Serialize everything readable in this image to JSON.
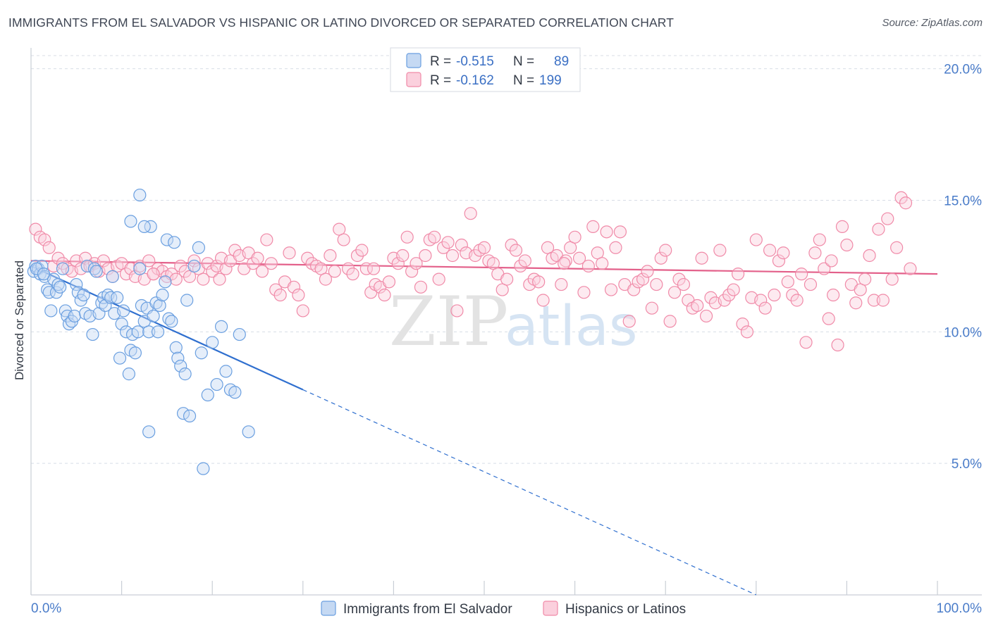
{
  "title": "IMMIGRANTS FROM EL SALVADOR VS HISPANIC OR LATINO DIVORCED OR SEPARATED CORRELATION CHART",
  "source": "Source: ZipAtlas.com",
  "watermark": {
    "part1": "ZIP",
    "part2": "atlas"
  },
  "colors": {
    "blue": "#6a9fe0",
    "blue_line": "#2f6fcf",
    "pink": "#f08aa8",
    "pink_line": "#e3608a",
    "tick_text": "#4a7cc9",
    "grid": "#d8dde6"
  },
  "legend": {
    "series": [
      {
        "r_label": "R =",
        "r_value": "-0.515",
        "n_label": "N =",
        "n_value": "89"
      },
      {
        "r_label": "R =",
        "r_value": "-0.162",
        "n_label": "N =",
        "n_value": "199"
      }
    ]
  },
  "chart_data": {
    "type": "scatter",
    "title": "IMMIGRANTS FROM EL SALVADOR VS HISPANIC OR LATINO DIVORCED OR SEPARATED CORRELATION CHART",
    "xlabel": "",
    "ylabel": "Divorced or Separated",
    "xlim": [
      0,
      100
    ],
    "ylim": [
      0,
      20.5
    ],
    "x_tick_labels": [
      "0.0%",
      "100.0%"
    ],
    "y_ticks": [
      5,
      10,
      15,
      20
    ],
    "y_tick_labels": [
      "5.0%",
      "10.0%",
      "15.0%",
      "20.0%"
    ],
    "grid": true,
    "legend_position": "top-center",
    "series": [
      {
        "name": "Immigrants from El Salvador",
        "color": "#6a9fe0",
        "trend": {
          "x_start": 0,
          "y_start": 12.5,
          "x_solid_end": 30,
          "y_solid_end": 7.8,
          "x_dashed_end": 80,
          "y_dashed_end": 0
        },
        "points": [
          [
            0.3,
            12.3
          ],
          [
            0.5,
            12.5
          ],
          [
            0.8,
            12.4
          ],
          [
            1.0,
            12.2
          ],
          [
            1.2,
            12.5
          ],
          [
            1.5,
            12.1
          ],
          [
            1.8,
            11.6
          ],
          [
            2.0,
            11.5
          ],
          [
            2.2,
            10.8
          ],
          [
            2.5,
            12.0
          ],
          [
            2.8,
            11.5
          ],
          [
            3.0,
            11.8
          ],
          [
            3.2,
            11.7
          ],
          [
            3.5,
            12.4
          ],
          [
            3.8,
            10.8
          ],
          [
            4.0,
            10.6
          ],
          [
            4.2,
            10.3
          ],
          [
            4.5,
            10.4
          ],
          [
            4.8,
            10.6
          ],
          [
            5.0,
            11.8
          ],
          [
            5.2,
            11.5
          ],
          [
            5.5,
            11.2
          ],
          [
            5.8,
            11.4
          ],
          [
            6.0,
            10.7
          ],
          [
            6.2,
            12.5
          ],
          [
            6.5,
            10.6
          ],
          [
            6.8,
            9.9
          ],
          [
            7.0,
            12.4
          ],
          [
            7.2,
            12.3
          ],
          [
            7.5,
            10.7
          ],
          [
            7.8,
            11.1
          ],
          [
            8.0,
            11.3
          ],
          [
            8.2,
            11.0
          ],
          [
            8.5,
            11.4
          ],
          [
            8.8,
            11.3
          ],
          [
            9.0,
            12.1
          ],
          [
            9.2,
            10.7
          ],
          [
            9.5,
            11.3
          ],
          [
            9.8,
            9.0
          ],
          [
            10.0,
            10.3
          ],
          [
            10.2,
            10.8
          ],
          [
            10.5,
            10.0
          ],
          [
            10.8,
            8.4
          ],
          [
            11.0,
            9.3
          ],
          [
            11.2,
            9.9
          ],
          [
            11.5,
            9.2
          ],
          [
            11.8,
            10.0
          ],
          [
            12.0,
            12.4
          ],
          [
            12.2,
            11.0
          ],
          [
            12.5,
            10.4
          ],
          [
            12.8,
            10.9
          ],
          [
            13.0,
            10.0
          ],
          [
            13.2,
            14.0
          ],
          [
            13.5,
            10.6
          ],
          [
            13.8,
            11.1
          ],
          [
            14.0,
            10.0
          ],
          [
            14.2,
            11.0
          ],
          [
            14.5,
            11.4
          ],
          [
            14.8,
            11.9
          ],
          [
            15.0,
            13.5
          ],
          [
            15.2,
            10.5
          ],
          [
            15.5,
            10.4
          ],
          [
            15.8,
            13.4
          ],
          [
            16.0,
            9.4
          ],
          [
            16.2,
            9.0
          ],
          [
            16.5,
            8.7
          ],
          [
            16.8,
            6.9
          ],
          [
            17.0,
            8.4
          ],
          [
            17.2,
            11.2
          ],
          [
            17.5,
            6.8
          ],
          [
            18.0,
            12.5
          ],
          [
            18.5,
            13.2
          ],
          [
            18.8,
            9.2
          ],
          [
            19.0,
            4.8
          ],
          [
            19.5,
            7.6
          ],
          [
            20.0,
            9.6
          ],
          [
            20.5,
            8.0
          ],
          [
            21.0,
            10.2
          ],
          [
            21.5,
            8.5
          ],
          [
            22.0,
            7.8
          ],
          [
            22.5,
            7.7
          ],
          [
            23.0,
            9.9
          ],
          [
            24.0,
            6.2
          ],
          [
            12.0,
            15.2
          ],
          [
            11.0,
            14.2
          ],
          [
            12.5,
            14.0
          ],
          [
            13.0,
            6.2
          ],
          [
            0.6,
            12.4
          ],
          [
            1.4,
            12.2
          ]
        ]
      },
      {
        "name": "Hispanics or Latinos",
        "color": "#f08aa8",
        "trend": {
          "x_start": 0,
          "y_start": 12.7,
          "x_end": 100,
          "y_end": 12.2
        },
        "points": [
          [
            0.5,
            13.9
          ],
          [
            1.0,
            13.6
          ],
          [
            1.5,
            13.5
          ],
          [
            2.0,
            13.2
          ],
          [
            2.5,
            12.5
          ],
          [
            3.0,
            12.8
          ],
          [
            3.5,
            12.6
          ],
          [
            4.0,
            12.4
          ],
          [
            4.5,
            12.3
          ],
          [
            5.0,
            12.7
          ],
          [
            5.5,
            12.4
          ],
          [
            6.0,
            12.8
          ],
          [
            6.5,
            12.5
          ],
          [
            7.0,
            12.6
          ],
          [
            7.5,
            12.3
          ],
          [
            8.0,
            12.7
          ],
          [
            8.5,
            12.4
          ],
          [
            9.0,
            12.1
          ],
          [
            9.5,
            12.5
          ],
          [
            10.0,
            12.6
          ],
          [
            10.5,
            12.2
          ],
          [
            11.0,
            12.4
          ],
          [
            11.5,
            12.1
          ],
          [
            12.0,
            12.5
          ],
          [
            12.5,
            12.0
          ],
          [
            13.0,
            12.7
          ],
          [
            13.5,
            12.2
          ],
          [
            14.0,
            12.4
          ],
          [
            14.5,
            12.3
          ],
          [
            15.0,
            12.1
          ],
          [
            15.5,
            12.2
          ],
          [
            16.0,
            12.0
          ],
          [
            16.5,
            12.5
          ],
          [
            17.0,
            12.3
          ],
          [
            17.5,
            12.1
          ],
          [
            18.0,
            12.7
          ],
          [
            18.5,
            12.4
          ],
          [
            19.0,
            12.0
          ],
          [
            19.5,
            12.6
          ],
          [
            20.0,
            12.3
          ],
          [
            20.5,
            12.5
          ],
          [
            21.0,
            12.8
          ],
          [
            21.5,
            12.4
          ],
          [
            22.0,
            12.7
          ],
          [
            22.5,
            13.1
          ],
          [
            23.0,
            12.9
          ],
          [
            23.5,
            12.4
          ],
          [
            24.0,
            13.0
          ],
          [
            24.5,
            12.6
          ],
          [
            25.0,
            12.8
          ],
          [
            25.5,
            12.3
          ],
          [
            26.0,
            13.5
          ],
          [
            26.5,
            12.6
          ],
          [
            27.0,
            11.6
          ],
          [
            27.5,
            11.4
          ],
          [
            28.0,
            11.9
          ],
          [
            28.5,
            13.0
          ],
          [
            29.0,
            11.7
          ],
          [
            29.5,
            11.4
          ],
          [
            30.0,
            10.8
          ],
          [
            30.5,
            12.8
          ],
          [
            31.0,
            12.6
          ],
          [
            31.5,
            12.5
          ],
          [
            32.0,
            12.4
          ],
          [
            32.5,
            12.0
          ],
          [
            33.0,
            12.9
          ],
          [
            33.5,
            12.3
          ],
          [
            34.0,
            13.9
          ],
          [
            34.5,
            13.5
          ],
          [
            35.0,
            12.4
          ],
          [
            35.5,
            12.2
          ],
          [
            36.0,
            12.9
          ],
          [
            36.5,
            13.1
          ],
          [
            37.0,
            12.4
          ],
          [
            37.5,
            11.5
          ],
          [
            38.0,
            11.8
          ],
          [
            38.5,
            11.7
          ],
          [
            39.0,
            11.4
          ],
          [
            39.5,
            11.9
          ],
          [
            40.0,
            12.8
          ],
          [
            40.5,
            12.6
          ],
          [
            41.0,
            12.9
          ],
          [
            41.5,
            13.6
          ],
          [
            42.0,
            12.3
          ],
          [
            42.5,
            12.6
          ],
          [
            43.0,
            11.7
          ],
          [
            43.5,
            12.9
          ],
          [
            44.0,
            13.5
          ],
          [
            44.5,
            13.6
          ],
          [
            45.0,
            12.0
          ],
          [
            45.5,
            13.2
          ],
          [
            46.0,
            13.4
          ],
          [
            46.5,
            12.9
          ],
          [
            47.0,
            10.8
          ],
          [
            47.5,
            13.3
          ],
          [
            48.0,
            13.0
          ],
          [
            48.5,
            14.5
          ],
          [
            49.0,
            12.9
          ],
          [
            49.5,
            13.1
          ],
          [
            50.0,
            13.2
          ],
          [
            50.5,
            12.7
          ],
          [
            51.0,
            12.6
          ],
          [
            51.5,
            12.2
          ],
          [
            52.0,
            11.6
          ],
          [
            52.5,
            12.0
          ],
          [
            53.0,
            13.3
          ],
          [
            53.5,
            13.1
          ],
          [
            54.0,
            12.5
          ],
          [
            54.5,
            12.7
          ],
          [
            55.0,
            11.8
          ],
          [
            55.5,
            12.0
          ],
          [
            56.0,
            11.9
          ],
          [
            56.5,
            11.2
          ],
          [
            57.0,
            13.2
          ],
          [
            57.5,
            12.8
          ],
          [
            58.0,
            12.9
          ],
          [
            58.5,
            11.8
          ],
          [
            59.0,
            12.7
          ],
          [
            59.5,
            13.2
          ],
          [
            60.0,
            13.6
          ],
          [
            60.5,
            12.8
          ],
          [
            61.0,
            11.5
          ],
          [
            61.5,
            12.5
          ],
          [
            62.0,
            14.0
          ],
          [
            62.5,
            13.0
          ],
          [
            63.0,
            12.6
          ],
          [
            63.5,
            13.8
          ],
          [
            64.0,
            11.6
          ],
          [
            64.5,
            13.2
          ],
          [
            65.0,
            13.8
          ],
          [
            65.5,
            11.8
          ],
          [
            66.0,
            10.4
          ],
          [
            66.5,
            11.6
          ],
          [
            67.0,
            11.9
          ],
          [
            67.5,
            12.0
          ],
          [
            68.0,
            12.3
          ],
          [
            68.5,
            10.9
          ],
          [
            69.0,
            11.8
          ],
          [
            69.5,
            12.8
          ],
          [
            70.0,
            13.1
          ],
          [
            70.5,
            10.4
          ],
          [
            71.0,
            11.5
          ],
          [
            71.5,
            12.0
          ],
          [
            72.0,
            11.8
          ],
          [
            72.5,
            11.2
          ],
          [
            73.0,
            10.9
          ],
          [
            73.5,
            11.0
          ],
          [
            74.0,
            12.8
          ],
          [
            74.5,
            10.6
          ],
          [
            75.0,
            11.3
          ],
          [
            75.5,
            11.1
          ],
          [
            76.0,
            13.1
          ],
          [
            76.5,
            11.2
          ],
          [
            77.0,
            11.4
          ],
          [
            77.5,
            11.6
          ],
          [
            78.0,
            12.2
          ],
          [
            78.5,
            10.3
          ],
          [
            79.0,
            10.0
          ],
          [
            79.5,
            11.3
          ],
          [
            80.0,
            13.5
          ],
          [
            80.5,
            11.2
          ],
          [
            81.0,
            10.9
          ],
          [
            81.5,
            13.1
          ],
          [
            82.0,
            11.4
          ],
          [
            82.5,
            12.7
          ],
          [
            83.0,
            13.0
          ],
          [
            83.5,
            11.9
          ],
          [
            84.0,
            11.4
          ],
          [
            84.5,
            11.2
          ],
          [
            85.0,
            12.2
          ],
          [
            85.5,
            9.6
          ],
          [
            86.0,
            11.8
          ],
          [
            86.5,
            13.0
          ],
          [
            87.0,
            13.5
          ],
          [
            87.5,
            12.4
          ],
          [
            88.0,
            10.5
          ],
          [
            88.5,
            11.4
          ],
          [
            89.0,
            9.5
          ],
          [
            89.5,
            14.0
          ],
          [
            90.0,
            13.3
          ],
          [
            90.5,
            11.8
          ],
          [
            91.0,
            11.1
          ],
          [
            91.5,
            11.6
          ],
          [
            92.0,
            12.0
          ],
          [
            92.5,
            12.9
          ],
          [
            93.0,
            11.2
          ],
          [
            93.5,
            13.9
          ],
          [
            94.0,
            11.2
          ],
          [
            94.5,
            14.3
          ],
          [
            95.0,
            12.0
          ],
          [
            95.5,
            13.2
          ],
          [
            96.0,
            15.1
          ],
          [
            96.5,
            14.9
          ],
          [
            97.0,
            12.4
          ],
          [
            13.5,
            12.2
          ],
          [
            20.8,
            12.0
          ],
          [
            37.8,
            12.4
          ],
          [
            58.8,
            12.6
          ],
          [
            88.3,
            12.7
          ]
        ]
      }
    ]
  },
  "bottom_legend": [
    {
      "label": "Immigrants from El Salvador"
    },
    {
      "label": "Hispanics or Latinos"
    }
  ]
}
